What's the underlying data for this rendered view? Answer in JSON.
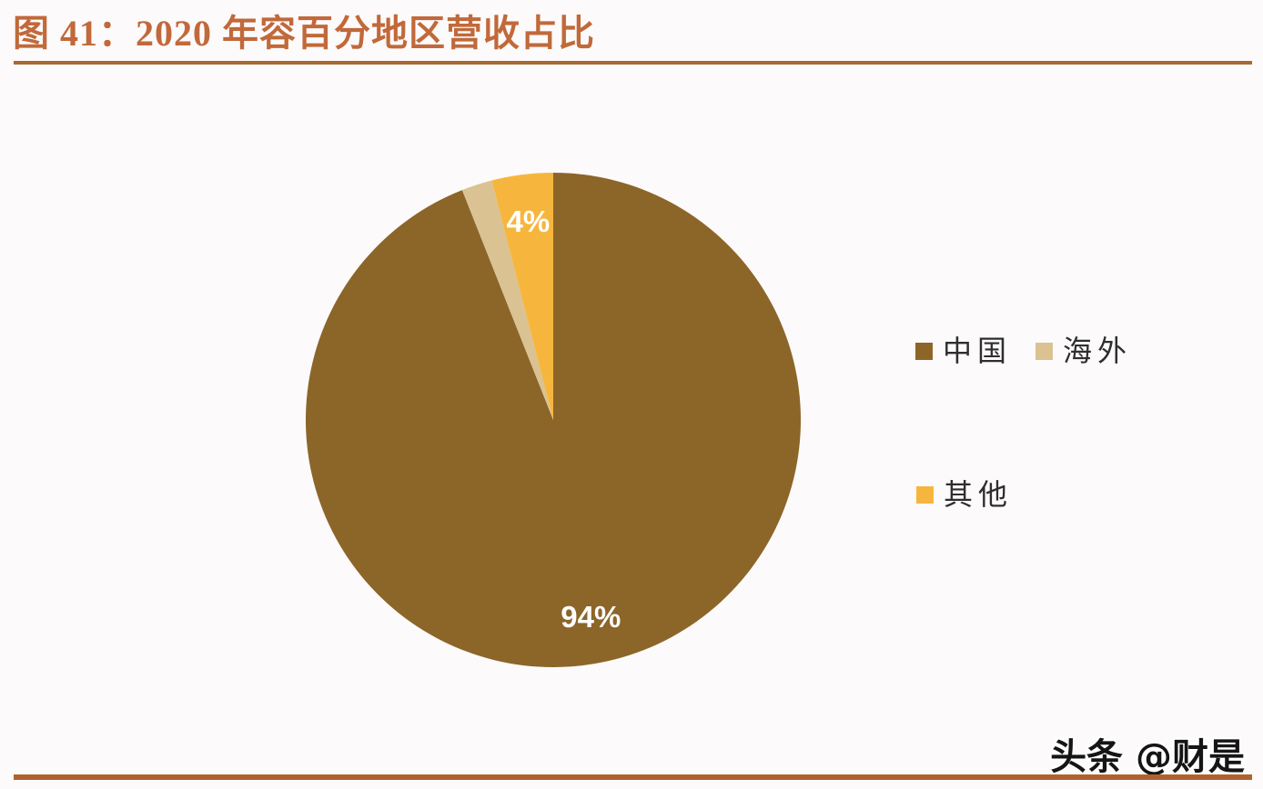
{
  "header": {
    "title": "图 41：2020 年容百分地区营收占比",
    "title_color": "#c1693a",
    "rule_color": "#a9682f"
  },
  "chart_data": {
    "type": "pie",
    "title": "2020 年容百分地区营收占比",
    "slices": [
      {
        "label": "中国",
        "value": 94,
        "data_label": "94%",
        "color": "#8c6529",
        "show_label": true
      },
      {
        "label": "海外",
        "value": 2,
        "data_label": "",
        "color": "#dac293",
        "show_label": false
      },
      {
        "label": "其他",
        "value": 4,
        "data_label": "4%",
        "color": "#f6b63e",
        "show_label": true
      }
    ],
    "start_angle_deg": 0,
    "direction": "clockwise",
    "legend_position": "right",
    "data_label_color": "#ffffff",
    "label_radius_ratio": 0.81
  },
  "watermark": {
    "text": "头条 @财是"
  },
  "footer": {
    "rule_color": "#b0622e"
  }
}
